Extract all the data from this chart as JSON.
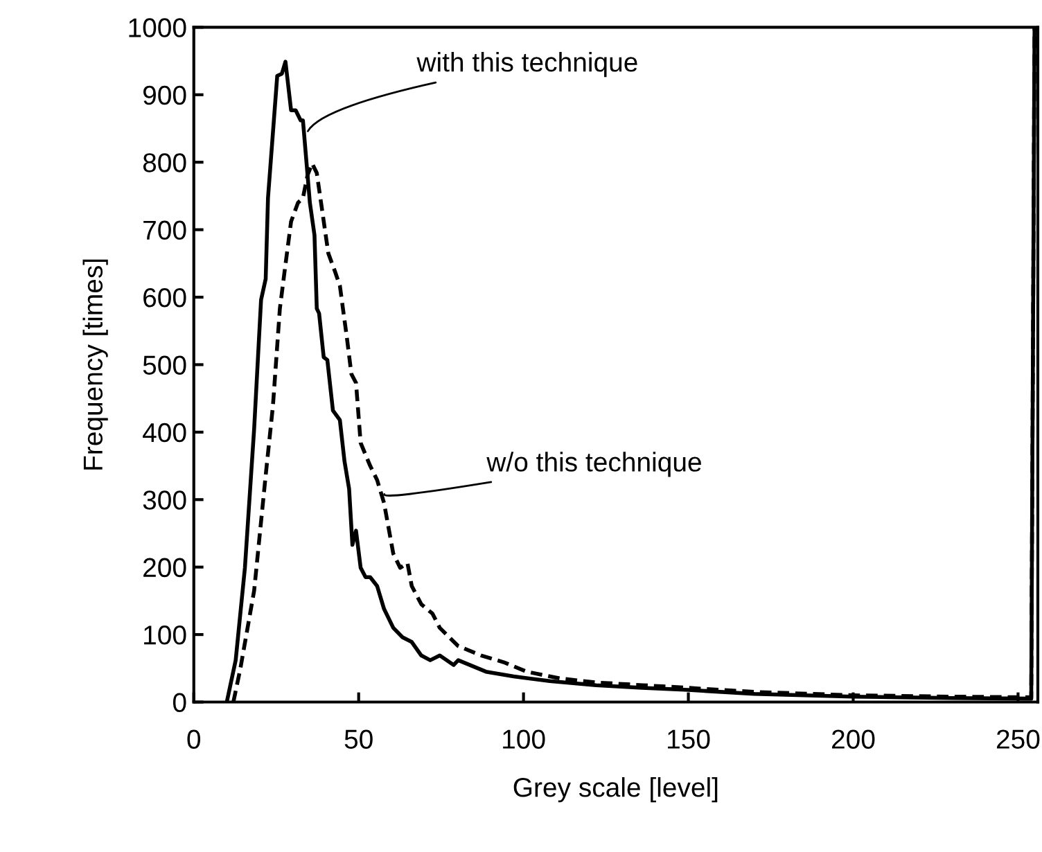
{
  "chart_data": {
    "type": "line",
    "xlabel": "Grey scale [level]",
    "ylabel": "Frequency [times]",
    "xlim": [
      0,
      256
    ],
    "xticks": [
      0,
      50,
      100,
      150,
      200,
      250
    ],
    "ylim": [
      0,
      1000
    ],
    "yticks": [
      0,
      100,
      200,
      300,
      400,
      500,
      600,
      700,
      800,
      900,
      1000
    ],
    "grid": false,
    "legend": false,
    "marker": "none",
    "series": [
      {
        "color": "#000000",
        "line_style": "solid",
        "x": [
          10,
          12.7,
          15.5,
          18.3,
          20.4,
          21.8,
          22.5,
          25.3,
          26.7,
          27.8,
          29.5,
          30.9,
          32.4,
          33.1,
          34.5,
          35.2,
          36.6,
          37.3,
          38,
          39.4,
          40.5,
          42.2,
          44.3,
          45.7,
          47.1,
          48.1,
          49.2,
          50.6,
          52.1,
          53.5,
          55.6,
          57.7,
          60.5,
          63.3,
          66.1,
          69,
          71.7,
          74.6,
          78.8,
          80.2,
          88.6,
          97,
          108,
          122,
          136,
          150,
          170,
          200,
          230,
          254,
          255
        ],
        "values": [
          0,
          62,
          199,
          405,
          596,
          627,
          747,
          928,
          931,
          949,
          877,
          877,
          862,
          862,
          781,
          740,
          692,
          583,
          576,
          511,
          507,
          432,
          418,
          357,
          316,
          233,
          254,
          199,
          185,
          185,
          172,
          138,
          110,
          96,
          89,
          69,
          62,
          69,
          55,
          62,
          45,
          38,
          31,
          25,
          21,
          18,
          12,
          8,
          6,
          5,
          1000
        ]
      },
      {
        "color": "#000000",
        "line_style": "dashed",
        "x": [
          12,
          14.1,
          18.3,
          21.8,
          24,
          26.1,
          27.5,
          29.5,
          31.6,
          33.1,
          34.5,
          35.9,
          37.3,
          38.8,
          40.8,
          42.9,
          44.3,
          46.4,
          47.8,
          49.2,
          50.6,
          53.5,
          55.6,
          57.7,
          60.5,
          62.6,
          64.8,
          66.1,
          69,
          72.4,
          74.6,
          80.2,
          87.2,
          94,
          101,
          111,
          122,
          136,
          150,
          170,
          200,
          230,
          254,
          255
        ],
        "values": [
          0,
          49,
          165,
          336,
          439,
          583,
          637,
          712,
          740,
          747,
          781,
          798,
          784,
          733,
          665,
          637,
          617,
          541,
          486,
          473,
          384,
          350,
          329,
          295,
          220,
          199,
          206,
          172,
          145,
          131,
          110,
          83,
          69,
          59,
          45,
          35,
          29,
          25,
          21,
          15,
          10,
          8,
          7,
          1000
        ]
      }
    ],
    "annotations": [
      {
        "text": "with this technique",
        "x": 34.6,
        "y": 846
      },
      {
        "text": "w/o this technique",
        "x": 57.8,
        "y": 308
      }
    ]
  }
}
